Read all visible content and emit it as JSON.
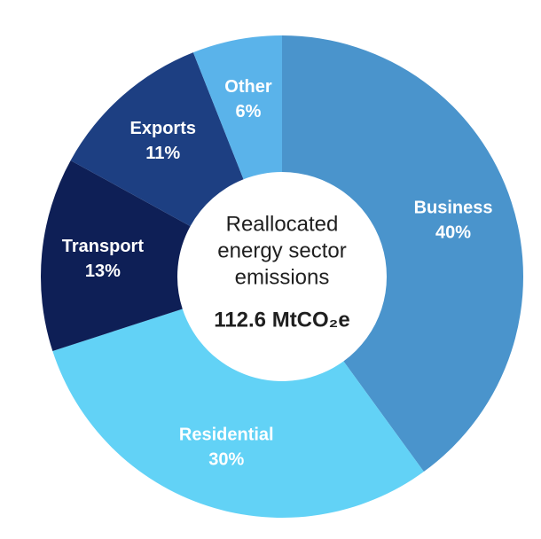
{
  "chart_data": {
    "type": "donut",
    "center_lines": [
      "Reallocated",
      "energy sector",
      "emissions"
    ],
    "center_total": "112.6 MtCO₂e",
    "categories": [
      "Business",
      "Residential",
      "Transport",
      "Exports",
      "Other"
    ],
    "values": [
      40,
      30,
      13,
      11,
      6
    ],
    "value_labels": [
      "40%",
      "30%",
      "13%",
      "11%",
      "6%"
    ],
    "colors": [
      "#4a94cc",
      "#62d2f6",
      "#0e1f56",
      "#1d3f82",
      "#5ab3ea"
    ]
  }
}
